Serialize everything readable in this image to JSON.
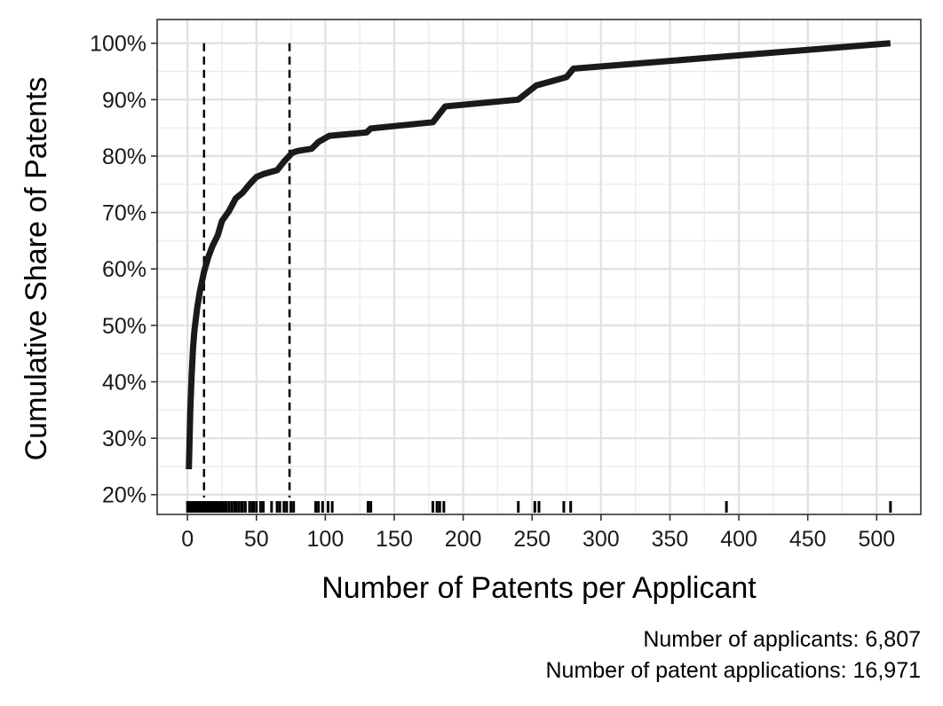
{
  "chart_data": {
    "type": "line",
    "xlabel": "Number of Patents per Applicant",
    "ylabel": "Cumulative Share of Patents",
    "xlim": [
      -22,
      532
    ],
    "ylim": [
      16.5,
      104.2
    ],
    "x_ticks": [
      0,
      50,
      100,
      150,
      200,
      250,
      300,
      350,
      400,
      450,
      500
    ],
    "x_tick_labels": [
      "0",
      "50",
      "100",
      "150",
      "200",
      "250",
      "300",
      "350",
      "400",
      "450",
      "500"
    ],
    "y_ticks": [
      20,
      30,
      40,
      50,
      60,
      70,
      80,
      90,
      100
    ],
    "y_tick_labels": [
      "20%",
      "30%",
      "40%",
      "50%",
      "60%",
      "70%",
      "80%",
      "90%",
      "100%"
    ],
    "grid": true,
    "series": [
      {
        "values_x": [
          1,
          2,
          3,
          4,
          5,
          7,
          9,
          12,
          15,
          18,
          22,
          25,
          30,
          35,
          40,
          45,
          50,
          55,
          65,
          70,
          76,
          80,
          90,
          95,
          103,
          130,
          133,
          178,
          187,
          240,
          253,
          275,
          280,
          510
        ],
        "values_y": [
          24.5,
          35,
          41,
          46,
          49,
          53,
          56,
          59.5,
          62,
          64,
          66,
          68.5,
          70.2,
          72.5,
          73.5,
          75,
          76.3,
          76.8,
          77.5,
          79,
          80.6,
          80.9,
          81.3,
          82.5,
          83.6,
          84.2,
          84.9,
          86,
          88.8,
          90,
          92.5,
          94,
          95.5,
          100
        ],
        "color": "#1a1a1a"
      }
    ],
    "reference_lines_x": [
      12,
      74
    ],
    "rug_x": [
      0,
      1,
      2,
      3,
      4,
      5,
      6,
      7,
      8,
      9,
      10,
      11,
      12,
      13,
      14,
      15,
      16,
      17,
      18,
      19,
      20,
      21,
      22,
      23,
      24,
      25,
      26,
      27,
      28,
      30,
      32,
      34,
      35,
      37,
      39,
      40,
      42,
      45,
      47,
      48,
      50,
      53,
      55,
      61,
      65,
      67,
      70,
      72,
      75,
      77,
      93,
      95,
      98,
      102,
      105,
      131,
      133,
      178,
      181,
      183,
      186,
      240,
      252,
      255,
      273,
      278,
      391,
      510
    ],
    "caption": [
      "Number of applicants: 6,807",
      "Number of patent applications: 16,971"
    ]
  }
}
